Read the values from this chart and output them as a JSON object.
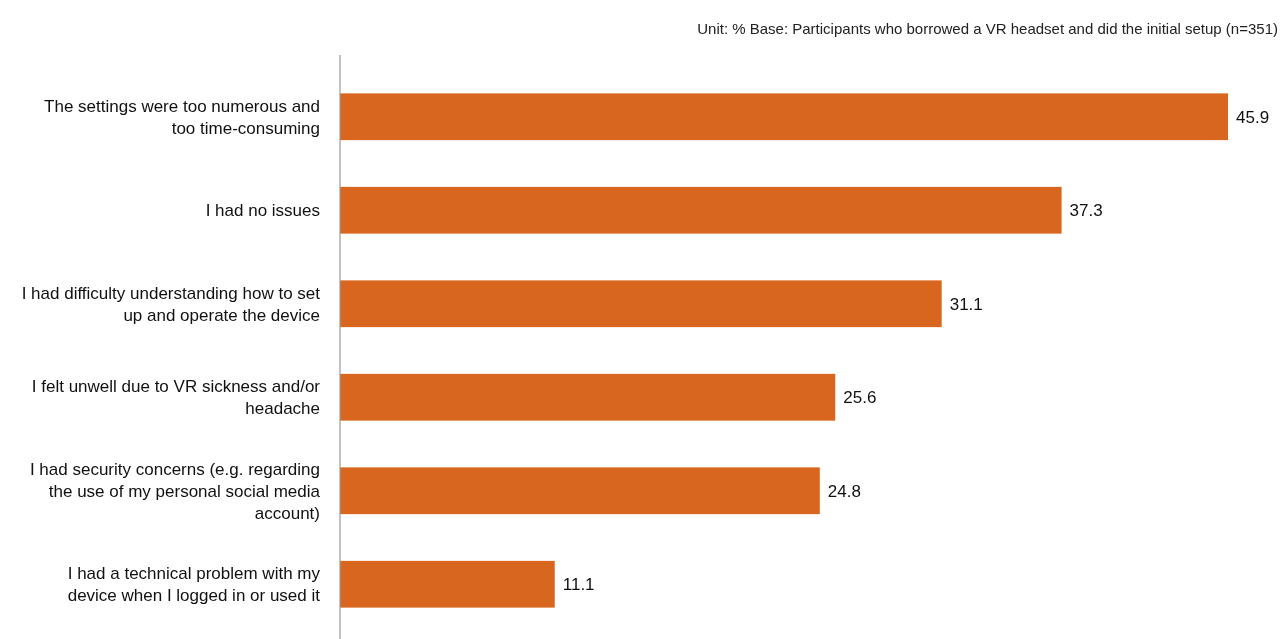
{
  "chart_data": {
    "type": "bar",
    "orientation": "horizontal",
    "categories": [
      "The settings were too numerous and too time-consuming",
      "I had no issues",
      "I had difficulty understanding how to set up and operate the device",
      "I felt unwell due to VR sickness and/or headache",
      "I had security concerns (e.g. regarding the use of my personal social media account)",
      "I had a technical problem with my device when I logged in or used it"
    ],
    "values": [
      45.9,
      37.3,
      31.1,
      25.6,
      24.8,
      11.1
    ],
    "color": "#d9661f",
    "data_labels": true,
    "tick_labels": "y",
    "annotations": [
      "Unit: % Base: Participants who borrowed a VR headset and did the initial setup (n=351)"
    ]
  }
}
